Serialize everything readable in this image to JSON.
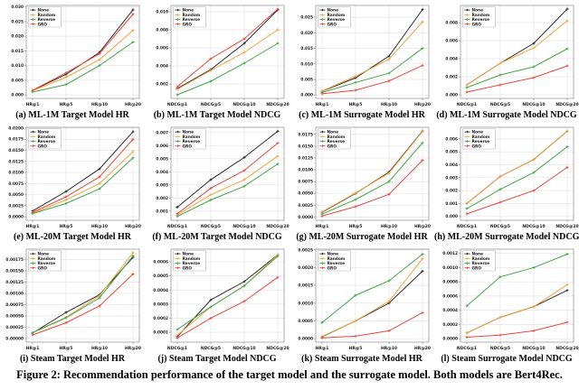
{
  "figure_caption": "Figure 2: Recommendation performance of the target model and the surrogate model. Both models are Bert4Rec.",
  "legend": [
    "None",
    "Random",
    "Reverse",
    "GRO"
  ],
  "colors": {
    "None": "#2b2b2b",
    "Random": "#f2a33c",
    "Reverse": "#44a648",
    "GRO": "#e8483c"
  },
  "style": {
    "grid": "#e4e4e4",
    "frame": "#9b9b9b",
    "text": "#1a1a1a",
    "legend_border": "#b5b5b5"
  },
  "chart_data": [
    {
      "type": "line",
      "caption": "(a) ML-1M Target Model HR",
      "categories": [
        "HR@1",
        "HR@5",
        "HR@10",
        "HR@20"
      ],
      "ylim": [
        -0.0012,
        0.0305
      ],
      "yticks": [
        0.0,
        0.005,
        0.01,
        0.015,
        0.02,
        0.025,
        0.03
      ],
      "ytick_labels": [
        "0.000",
        "0.005",
        "0.010",
        "0.015",
        "0.020",
        "0.025",
        "0.030"
      ],
      "series": [
        {
          "name": "None",
          "values": [
            0.0015,
            0.007,
            0.0145,
            0.029
          ]
        },
        {
          "name": "Random",
          "values": [
            0.0014,
            0.006,
            0.012,
            0.022
          ]
        },
        {
          "name": "Reverse",
          "values": [
            0.001,
            0.0035,
            0.01,
            0.018
          ]
        },
        {
          "name": "GRO",
          "values": [
            0.0016,
            0.0075,
            0.014,
            0.0275
          ]
        }
      ]
    },
    {
      "type": "line",
      "caption": "(b) ML-1M Target Model NDCG",
      "categories": [
        "NDCG@1",
        "NDCG@5",
        "NDCG@10",
        "NDCG@20"
      ],
      "ylim": [
        0.0004,
        0.0107
      ],
      "yticks": [
        0.002,
        0.004,
        0.006,
        0.008,
        0.01
      ],
      "ytick_labels": [
        "0.002",
        "0.004",
        "0.006",
        "0.008",
        "0.010"
      ],
      "series": [
        {
          "name": "None",
          "values": [
            0.0015,
            0.0036,
            0.0065,
            0.0102
          ]
        },
        {
          "name": "Random",
          "values": [
            0.0014,
            0.0035,
            0.0055,
            0.008
          ]
        },
        {
          "name": "Reverse",
          "values": [
            0.0008,
            0.0023,
            0.0043,
            0.0065
          ]
        },
        {
          "name": "GRO",
          "values": [
            0.0017,
            0.0048,
            0.007,
            0.0103
          ]
        }
      ]
    },
    {
      "type": "line",
      "caption": "(c) ML-1M Surrogate Model HR",
      "categories": [
        "HR@1",
        "HR@5",
        "HR@10",
        "HR@20"
      ],
      "ylim": [
        -0.0011,
        0.0288
      ],
      "yticks": [
        0.0,
        0.005,
        0.01,
        0.015,
        0.02,
        0.025
      ],
      "ytick_labels": [
        "0.000",
        "0.005",
        "0.010",
        "0.015",
        "0.020",
        "0.025"
      ],
      "series": [
        {
          "name": "None",
          "values": [
            0.0012,
            0.0055,
            0.0125,
            0.0275
          ]
        },
        {
          "name": "Random",
          "values": [
            0.0013,
            0.006,
            0.0115,
            0.0235
          ]
        },
        {
          "name": "Reverse",
          "values": [
            0.0008,
            0.004,
            0.007,
            0.015
          ]
        },
        {
          "name": "GRO",
          "values": [
            0.0004,
            0.0015,
            0.0045,
            0.0095
          ]
        }
      ]
    },
    {
      "type": "line",
      "caption": "(d) ML-1M Surrogate Model NDCG",
      "categories": [
        "NDCG@1",
        "NDCG@5",
        "NDCG@10",
        "NDCG@20"
      ],
      "ylim": [
        -0.0004,
        0.0099
      ],
      "yticks": [
        0.0,
        0.002,
        0.004,
        0.006,
        0.008
      ],
      "ytick_labels": [
        "0.000",
        "0.002",
        "0.004",
        "0.006",
        "0.008"
      ],
      "series": [
        {
          "name": "None",
          "values": [
            0.0011,
            0.0035,
            0.0057,
            0.0095
          ]
        },
        {
          "name": "Random",
          "values": [
            0.0011,
            0.0035,
            0.0052,
            0.0082
          ]
        },
        {
          "name": "Reverse",
          "values": [
            0.0008,
            0.0022,
            0.0031,
            0.0051
          ]
        },
        {
          "name": "GRO",
          "values": [
            0.0003,
            0.0011,
            0.0019,
            0.0032
          ]
        }
      ]
    },
    {
      "type": "line",
      "caption": "(e) ML-20M Target Model HR",
      "categories": [
        "HR@1",
        "HR@5",
        "HR@10",
        "HR@20"
      ],
      "ylim": [
        -0.0008,
        0.0202
      ],
      "yticks": [
        0.0,
        0.0025,
        0.005,
        0.0075,
        0.01,
        0.0125,
        0.015,
        0.0175,
        0.02
      ],
      "ytick_labels": [
        "0.0000",
        "0.0025",
        "0.0050",
        "0.0075",
        "0.0100",
        "0.0125",
        "0.0150",
        "0.0175",
        "0.0200"
      ],
      "series": [
        {
          "name": "None",
          "values": [
            0.0013,
            0.0057,
            0.0108,
            0.0192
          ]
        },
        {
          "name": "Random",
          "values": [
            0.0008,
            0.0038,
            0.0075,
            0.0147
          ]
        },
        {
          "name": "Reverse",
          "values": [
            0.0007,
            0.003,
            0.0063,
            0.0133
          ]
        },
        {
          "name": "GRO",
          "values": [
            0.001,
            0.0045,
            0.009,
            0.0175
          ]
        }
      ]
    },
    {
      "type": "line",
      "caption": "(f) ML-20M Target Model NDCG",
      "categories": [
        "NDCG@1",
        "NDCG@5",
        "NDCG@10",
        "NDCG@20"
      ],
      "ylim": [
        0.0003,
        0.0074
      ],
      "yticks": [
        0.001,
        0.002,
        0.003,
        0.004,
        0.005,
        0.006,
        0.007
      ],
      "ytick_labels": [
        "0.001",
        "0.002",
        "0.003",
        "0.004",
        "0.005",
        "0.006",
        "0.007"
      ],
      "series": [
        {
          "name": "None",
          "values": [
            0.0013,
            0.0034,
            0.0051,
            0.0071
          ]
        },
        {
          "name": "Random",
          "values": [
            0.0007,
            0.00225,
            0.0034,
            0.0052
          ]
        },
        {
          "name": "Reverse",
          "values": [
            0.0006,
            0.00185,
            0.0029,
            0.0046
          ]
        },
        {
          "name": "GRO",
          "values": [
            0.0008,
            0.00275,
            0.0041,
            0.0062
          ]
        }
      ]
    },
    {
      "type": "line",
      "caption": "(g) ML-20M Surrogate Model HR",
      "categories": [
        "HR@1",
        "HR@5",
        "HR@10",
        "HR@20"
      ],
      "ylim": [
        -0.0007,
        0.019
      ],
      "yticks": [
        0.0,
        0.0025,
        0.005,
        0.0075,
        0.01,
        0.0125,
        0.015,
        0.0175
      ],
      "ytick_labels": [
        "0.0000",
        "0.0025",
        "0.0050",
        "0.0075",
        "0.0100",
        "0.0125",
        "0.0150",
        "0.0175"
      ],
      "series": [
        {
          "name": "None",
          "values": [
            0.001,
            0.005,
            0.0095,
            0.0182
          ]
        },
        {
          "name": "Random",
          "values": [
            0.0011,
            0.0051,
            0.0093,
            0.0181
          ]
        },
        {
          "name": "Reverse",
          "values": [
            0.0006,
            0.0037,
            0.0075,
            0.0157
          ]
        },
        {
          "name": "GRO",
          "values": [
            0.0002,
            0.0022,
            0.0048,
            0.012
          ]
        }
      ]
    },
    {
      "type": "line",
      "caption": "(h) ML-20M Surrogate Model NDCG",
      "categories": [
        "NDCG@1",
        "NDCG@5",
        "NDCG@10",
        "NDCG@20"
      ],
      "ylim": [
        -0.0003,
        0.0069
      ],
      "yticks": [
        0.0,
        0.001,
        0.002,
        0.003,
        0.004,
        0.005,
        0.006
      ],
      "ytick_labels": [
        "0.000",
        "0.001",
        "0.002",
        "0.003",
        "0.004",
        "0.005",
        "0.006"
      ],
      "series": [
        {
          "name": "None",
          "values": [
            0.001,
            0.0031,
            0.0044,
            0.0066
          ]
        },
        {
          "name": "Random",
          "values": [
            0.001,
            0.0031,
            0.0044,
            0.0066
          ]
        },
        {
          "name": "Reverse",
          "values": [
            0.0006,
            0.0021,
            0.0034,
            0.0054
          ]
        },
        {
          "name": "GRO",
          "values": [
            0.0002,
            0.0011,
            0.002,
            0.0038
          ]
        }
      ]
    },
    {
      "type": "line",
      "caption": "(i) Steam Target Model HR",
      "categories": [
        "HR@1",
        "HR@5",
        "HR@10",
        "HR@20"
      ],
      "ylim": [
        -8e-05,
        0.00198
      ],
      "yticks": [
        0.0,
        0.00025,
        0.0005,
        0.00075,
        0.001,
        0.00125,
        0.0015,
        0.00175
      ],
      "ytick_labels": [
        "0.00000",
        "0.00025",
        "0.00050",
        "0.00075",
        "0.00100",
        "0.00125",
        "0.00150",
        "0.00175"
      ],
      "series": [
        {
          "name": "None",
          "values": [
            0.00012,
            0.00058,
            0.00097,
            0.0018
          ]
        },
        {
          "name": "Random",
          "values": [
            0.00013,
            0.00047,
            0.00095,
            0.0019
          ]
        },
        {
          "name": "Reverse",
          "values": [
            0.00013,
            0.00046,
            0.0009,
            0.00183
          ]
        },
        {
          "name": "GRO",
          "values": [
            8e-05,
            0.00035,
            0.00072,
            0.00143
          ]
        }
      ]
    },
    {
      "type": "line",
      "caption": "(j) Steam Target Model NDCG",
      "categories": [
        "NDCG@1",
        "NDCG@5",
        "NDCG@10",
        "NDCG@20"
      ],
      "ylim": [
        3e-05,
        0.00069
      ],
      "yticks": [
        0.0001,
        0.0002,
        0.0003,
        0.0004,
        0.0005,
        0.0006
      ],
      "ytick_labels": [
        "0.0001",
        "0.0002",
        "0.0003",
        "0.0004",
        "0.0005",
        "0.0006"
      ],
      "series": [
        {
          "name": "None",
          "values": [
            7e-05,
            0.00033,
            0.00046,
            0.00065
          ]
        },
        {
          "name": "Random",
          "values": [
            8e-05,
            0.00028,
            0.00043,
            0.00065
          ]
        },
        {
          "name": "Reverse",
          "values": [
            0.00012,
            0.00028,
            0.00043,
            0.00064
          ]
        },
        {
          "name": "GRO",
          "values": [
            6e-05,
            0.0002,
            0.00032,
            0.00049
          ]
        }
      ]
    },
    {
      "type": "line",
      "caption": "(k) Steam Surrogate Model HR",
      "categories": [
        "HR@1",
        "HR@5",
        "HR@10",
        "HR@20"
      ],
      "ylim": [
        -0.0001,
        0.00252
      ],
      "yticks": [
        0.0,
        0.0005,
        0.001,
        0.0015,
        0.002,
        0.0025
      ],
      "ytick_labels": [
        "0.0000",
        "0.0005",
        "0.0010",
        "0.0015",
        "0.0020",
        "0.0025"
      ],
      "series": [
        {
          "name": "None",
          "values": [
            5e-05,
            0.0005,
            0.001,
            0.0019
          ]
        },
        {
          "name": "Random",
          "values": [
            6e-05,
            0.0005,
            0.00105,
            0.00225
          ]
        },
        {
          "name": "Reverse",
          "values": [
            0.00045,
            0.00122,
            0.00163,
            0.00238
          ]
        },
        {
          "name": "GRO",
          "values": [
            2e-05,
            7e-05,
            0.00022,
            0.00073
          ]
        }
      ]
    },
    {
      "type": "line",
      "caption": "(l) Steam Surrogate Model NDCG",
      "categories": [
        "NDCG@1",
        "NDCG@5",
        "NDCG@10",
        "NDCG@20"
      ],
      "ylim": [
        -5e-05,
        0.00126
      ],
      "yticks": [
        0.0,
        0.0002,
        0.0004,
        0.0006,
        0.0008,
        0.001,
        0.0012
      ],
      "ytick_labels": [
        "0.0000",
        "0.0002",
        "0.0004",
        "0.0006",
        "0.0008",
        "0.0010",
        "0.0012"
      ],
      "series": [
        {
          "name": "None",
          "values": [
            8e-05,
            0.0003,
            0.00045,
            0.00068
          ]
        },
        {
          "name": "Random",
          "values": [
            8e-05,
            0.0003,
            0.00045,
            0.00076
          ]
        },
        {
          "name": "Reverse",
          "values": [
            0.00046,
            0.00087,
            0.001,
            0.00119
          ]
        },
        {
          "name": "GRO",
          "values": [
            2e-05,
            5e-05,
            0.00011,
            0.00023
          ]
        }
      ]
    }
  ]
}
